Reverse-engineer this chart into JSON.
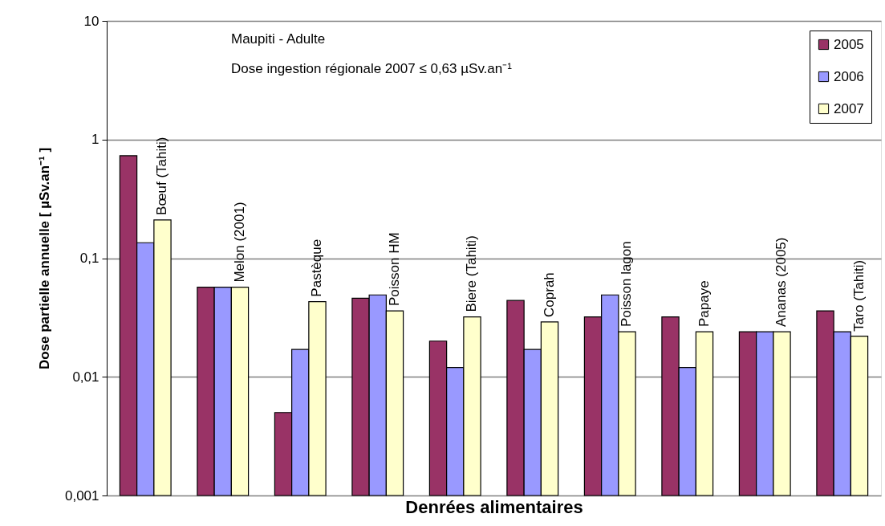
{
  "chart_data": {
    "type": "bar",
    "xlabel": "Denrées alimentaires",
    "ylabel": "Dose partielle annuelle [ µSv.an⁻¹ ]",
    "annotations": [
      "Maupiti - Adulte",
      "Dose ingestion régionale 2007 ≤ 0,63 µSv.an⁻¹"
    ],
    "categories": [
      "Bœuf (Tahiti)",
      "Melon (2001)",
      "Pastèque",
      "Poisson HM",
      "Biere (Tahiti)",
      "Coprah",
      "Poisson lagon",
      "Papaye",
      "Ananas (2005)",
      "Taro (Tahiti)"
    ],
    "series": [
      {
        "name": "2005",
        "color": "#993366",
        "values": [
          0.73,
          0.057,
          0.005,
          0.046,
          0.02,
          0.044,
          0.032,
          0.032,
          0.024,
          0.036
        ]
      },
      {
        "name": "2006",
        "color": "#9999ff",
        "values": [
          0.135,
          0.057,
          0.017,
          0.049,
          0.012,
          0.017,
          0.049,
          0.012,
          0.024,
          0.024
        ]
      },
      {
        "name": "2007",
        "color": "#ffffcc",
        "values": [
          0.21,
          0.057,
          0.043,
          0.036,
          0.032,
          0.029,
          0.024,
          0.024,
          0.024,
          0.022
        ]
      }
    ],
    "log": true,
    "ylim": [
      0.001,
      10
    ],
    "yticks": [
      {
        "value": 0.001,
        "label": "0,001"
      },
      {
        "value": 0.01,
        "label": "0,01"
      },
      {
        "value": 0.1,
        "label": "0,1"
      },
      1,
      10
    ],
    "grid": "y",
    "legend": "top right",
    "tick_labels": "y"
  }
}
